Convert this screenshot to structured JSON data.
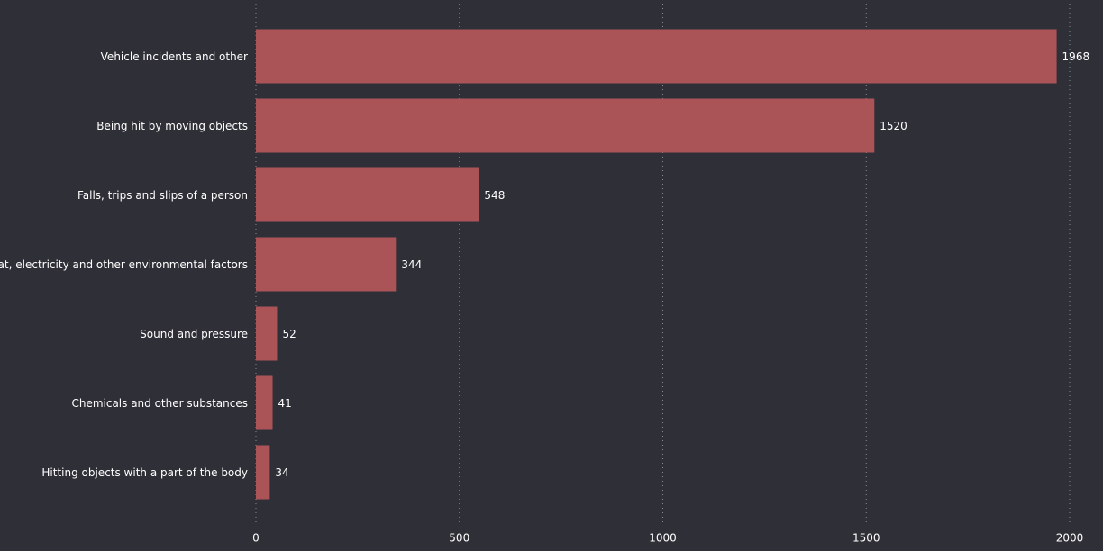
{
  "chart_data": {
    "type": "bar",
    "orientation": "horizontal",
    "categories": [
      "Vehicle incidents and other",
      "Being hit by moving objects",
      "Falls, trips and slips of a person",
      "Heat, electricity and other environmental factors",
      "Sound and pressure",
      "Chemicals and other substances",
      "Hitting objects with a part of the body"
    ],
    "values": [
      1968,
      1520,
      548,
      344,
      52,
      41,
      34
    ],
    "color": "#ab5458",
    "xlim": [
      0,
      2000
    ],
    "xticks": [
      0,
      500,
      1000,
      1500,
      2000
    ],
    "grid": true
  }
}
